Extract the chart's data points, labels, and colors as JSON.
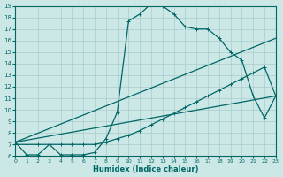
{
  "xlabel": "Humidex (Indice chaleur)",
  "bg_color": "#cce8e6",
  "line_color": "#006666",
  "grid_color": "#aacccc",
  "xlim": [
    0,
    23
  ],
  "ylim": [
    6,
    19
  ],
  "xticks": [
    0,
    1,
    2,
    3,
    4,
    5,
    6,
    7,
    8,
    9,
    10,
    11,
    12,
    13,
    14,
    15,
    16,
    17,
    18,
    19,
    20,
    21,
    22,
    23
  ],
  "yticks": [
    6,
    7,
    8,
    9,
    10,
    11,
    12,
    13,
    14,
    15,
    16,
    17,
    18,
    19
  ],
  "curve1_x": [
    0,
    1,
    2,
    3,
    4,
    5,
    6,
    7,
    8,
    9,
    10,
    11,
    12,
    13,
    14,
    15,
    16,
    17,
    18,
    19,
    20,
    21,
    22,
    23
  ],
  "curve1_y": [
    7.2,
    6.1,
    6.1,
    7.0,
    6.1,
    6.1,
    6.1,
    6.3,
    7.5,
    9.8,
    17.7,
    18.3,
    19.2,
    19.0,
    18.3,
    17.2,
    17.0,
    17.0,
    16.2,
    15.0,
    14.3,
    11.2,
    9.3,
    11.2
  ],
  "curve2_x": [
    0,
    1,
    2,
    3,
    4,
    5,
    6,
    7,
    8,
    9,
    10,
    11,
    12,
    13,
    14,
    15,
    16,
    17,
    18,
    19,
    20,
    21,
    22,
    23
  ],
  "curve2_y": [
    7.0,
    7.0,
    7.0,
    7.0,
    7.0,
    7.0,
    7.0,
    7.0,
    7.2,
    7.5,
    7.8,
    8.2,
    8.7,
    9.2,
    9.7,
    10.2,
    10.7,
    11.2,
    11.7,
    12.2,
    12.7,
    13.2,
    13.7,
    11.2
  ],
  "line1_x": [
    0,
    23
  ],
  "line1_y": [
    7.2,
    16.2
  ],
  "line2_x": [
    0,
    23
  ],
  "line2_y": [
    7.2,
    11.2
  ]
}
